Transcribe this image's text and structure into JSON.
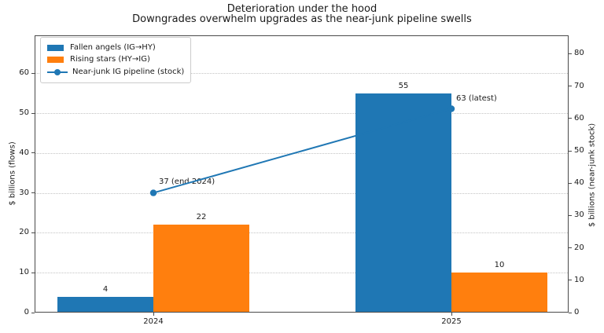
{
  "chart_data": {
    "type": "bar",
    "title": "Deterioration under the hood",
    "subtitle": "Downgrades overwhelm upgrades as the near-junk pipeline swells",
    "categories": [
      "2024",
      "2025"
    ],
    "series": [
      {
        "name": "Fallen angels (IG→HY)",
        "type": "bar",
        "axis": "left",
        "color": "#1f77b4",
        "values": [
          4,
          55
        ]
      },
      {
        "name": "Rising stars (HY→IG)",
        "type": "bar",
        "axis": "left",
        "color": "#ff7f0e",
        "values": [
          22,
          10
        ]
      },
      {
        "name": "Near-junk IG pipeline (stock)",
        "type": "line",
        "axis": "right",
        "color": "#1f77b4",
        "values": [
          37,
          63
        ],
        "point_annotations": [
          "37 (end 2024)",
          "63 (latest)"
        ]
      }
    ],
    "bar_value_labels": [
      [
        "4",
        "55"
      ],
      [
        "22",
        "10"
      ]
    ],
    "left_axis": {
      "label": "$ billions (flows)",
      "ticks": [
        0,
        10,
        20,
        30,
        40,
        50,
        60
      ],
      "max": 69.5
    },
    "right_axis": {
      "label": "$ billions (near-junk stock)",
      "ticks": [
        0,
        10,
        20,
        30,
        40,
        50,
        60,
        70,
        80
      ],
      "max": 85.7
    },
    "grid": {
      "horizontal": true,
      "style": "dotted",
      "on_axis": "left"
    },
    "legend": {
      "position": "upper-left"
    },
    "colors": {
      "blue": "#1f77b4",
      "orange": "#ff7f0e",
      "spine": "#4a4a4a",
      "grid": "#c3c3c3"
    }
  }
}
